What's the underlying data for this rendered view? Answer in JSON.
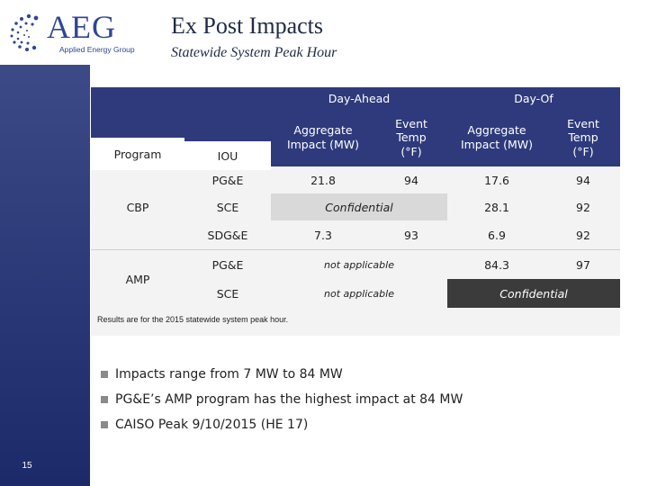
{
  "logo": {
    "wordmark": "AEG",
    "tagline": "Applied Energy Group",
    "color": "#2f4793"
  },
  "title": "Ex Post Impacts",
  "subtitle": "Statewide System Peak Hour",
  "slide_number": "15",
  "table": {
    "group_headers": {
      "day_ahead": "Day-Ahead",
      "day_of": "Day-Of"
    },
    "col_headers": {
      "program": "Program",
      "iou": "IOU",
      "da_impact": "Aggregate Impact (MW)",
      "da_temp": "Event Temp (°F)",
      "do_impact": "Aggregate Impact (MW)",
      "do_temp": "Event Temp (°F)"
    },
    "programs": {
      "cbp": "CBP",
      "amp": "AMP"
    },
    "rows": [
      {
        "iou": "PG&E",
        "da_impact": "21.8",
        "da_temp": "94",
        "do_impact": "17.6",
        "do_temp": "94"
      },
      {
        "iou": "SCE",
        "da_confidential": "Confidential",
        "do_impact": "28.1",
        "do_temp": "92"
      },
      {
        "iou": "SDG&E",
        "da_impact": "7.3",
        "da_temp": "93",
        "do_impact": "6.9",
        "do_temp": "92"
      },
      {
        "iou": "PG&E",
        "da_na": "not applicable",
        "do_impact": "84.3",
        "do_temp": "97"
      },
      {
        "iou": "SCE",
        "da_na": "not applicable",
        "do_confidential": "Confidential"
      }
    ],
    "note": "Results are for the 2015 statewide system peak hour.",
    "colors": {
      "header": "#2e3a7c",
      "confidential_dark": "#3b3b3b",
      "confidential_grey": "#d9d9d9"
    }
  },
  "bullets": [
    "Impacts range from 7 MW to 84 MW",
    "PG&E’s AMP program has the highest impact at 84 MW",
    "CAISO Peak 9/10/2015 (HE 17)"
  ]
}
